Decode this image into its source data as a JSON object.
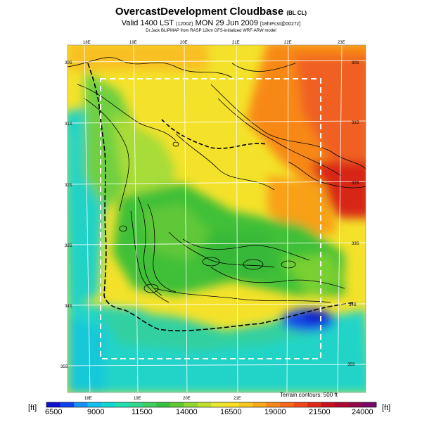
{
  "title": {
    "main": "OvercastDevelopment Cloudbase",
    "main_suffix": "(BL CL)",
    "valid_prefix": "Valid 1400 LST",
    "valid_code": "(1200Z)",
    "valid_date": "MON 29 Jun 2009",
    "valid_suffix": "[18hrFcst@0027z]",
    "model_line": "Dr.Jack BLIPMAP from RASP 12km GFS-initialized WRF-ARW model"
  },
  "map": {
    "lon_labels_top": [
      "18E",
      "19E",
      "20E",
      "21E",
      "22E",
      "23E"
    ],
    "lon_labels_bottom": [
      "18E",
      "19E",
      "20E",
      "21E"
    ],
    "lat_labels_left": [
      "30S",
      "31S",
      "32S",
      "33S",
      "34S",
      "35S"
    ],
    "lat_labels_right": [
      "30S",
      "31S",
      "32S",
      "33S",
      "34S",
      "35S"
    ],
    "terrain_note": "Terrain contours: 500 ft"
  },
  "colorbar": {
    "unit_left": "[ft]",
    "unit_right": "[ft]",
    "ticks": [
      "6500",
      "9000",
      "11500",
      "14000",
      "16500",
      "19000",
      "21500",
      "24000"
    ],
    "colors": [
      "#1010d0",
      "#1040f0",
      "#1890f8",
      "#10c0f0",
      "#10d8d0",
      "#20e0b0",
      "#30d890",
      "#40d060",
      "#38c040",
      "#60c830",
      "#90d830",
      "#c0e030",
      "#e8e830",
      "#f8e020",
      "#f8c820",
      "#f8a818",
      "#f88818",
      "#f86818",
      "#f04818",
      "#e02818",
      "#c81020",
      "#b00830",
      "#900848",
      "#780868"
    ]
  },
  "colors": {
    "sea_cyan": "#20d8d0",
    "land_green": "#40c040",
    "high_orange": "#f88818",
    "high_red": "#e02818",
    "plateau_yellow": "#f8e020"
  }
}
